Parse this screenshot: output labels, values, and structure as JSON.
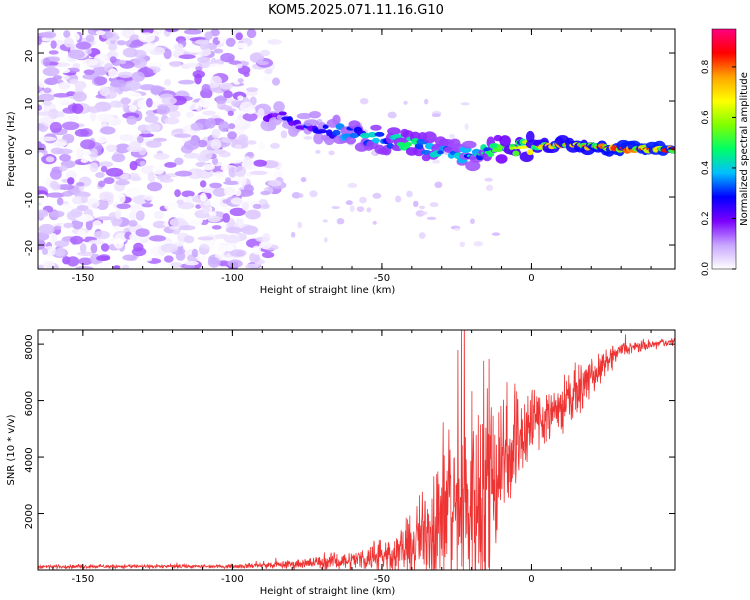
{
  "title": "KOM5.2025.071.11.16.G10",
  "chart_data": [
    {
      "type": "heatmap",
      "xlabel": "Height of straight line (km)",
      "ylabel": "Frequency (Hz)",
      "xlim": [
        -165,
        48
      ],
      "ylim": [
        -25,
        25
      ],
      "xticks": [
        -150,
        -100,
        -50,
        0
      ],
      "yticks": [
        -20,
        -10,
        0,
        10,
        20
      ],
      "colorbar": {
        "label": "Normalized spectral amplitude",
        "range": [
          0,
          0.95
        ],
        "ticks": [
          0.0,
          0.2,
          0.4,
          0.6,
          0.8
        ],
        "colors": [
          "#ffffff",
          "#c8a6ff",
          "#7b00ff",
          "#0000ff",
          "#00bfff",
          "#00ff66",
          "#80ff00",
          "#ffff00",
          "#ffa500",
          "#ff0000",
          "#ff0080"
        ]
      },
      "noise_region": {
        "x_range": [
          -165,
          -80
        ],
        "amplitude_range": [
          0.0,
          0.15
        ]
      },
      "signal_trace": [
        {
          "x": -88,
          "freq": 7,
          "amplitude": 0.25
        },
        {
          "x": -80,
          "freq": 6,
          "amplitude": 0.28
        },
        {
          "x": -70,
          "freq": 4.5,
          "amplitude": 0.32
        },
        {
          "x": -60,
          "freq": 3,
          "amplitude": 0.4
        },
        {
          "x": -50,
          "freq": 2,
          "amplitude": 0.45
        },
        {
          "x": -40,
          "freq": 1,
          "amplitude": 0.5
        },
        {
          "x": -30,
          "freq": -0.5,
          "amplitude": 0.45
        },
        {
          "x": -20,
          "freq": -1.5,
          "amplitude": 0.4
        },
        {
          "x": -10,
          "freq": 0,
          "amplitude": 0.55
        },
        {
          "x": 0,
          "freq": 0.5,
          "amplitude": 0.7
        },
        {
          "x": 10,
          "freq": 1,
          "amplitude": 0.75
        },
        {
          "x": 20,
          "freq": 0.5,
          "amplitude": 0.8
        },
        {
          "x": 30,
          "freq": 0,
          "amplitude": 0.85
        },
        {
          "x": 45,
          "freq": 0,
          "amplitude": 0.85
        }
      ]
    },
    {
      "type": "line",
      "xlabel": "Height of straight line (km)",
      "ylabel": "SNR (10 * v/v)",
      "xlim": [
        -165,
        48
      ],
      "ylim": [
        0,
        8500
      ],
      "xticks": [
        -150,
        -100,
        -50,
        0
      ],
      "yticks": [
        2000,
        4000,
        6000,
        8000
      ],
      "series": [
        {
          "color": "#ee3333",
          "envelope": [
            {
              "x": -165,
              "mean": 120,
              "amp": 60
            },
            {
              "x": -100,
              "mean": 130,
              "amp": 60
            },
            {
              "x": -80,
              "mean": 200,
              "amp": 150
            },
            {
              "x": -60,
              "mean": 350,
              "amp": 300
            },
            {
              "x": -50,
              "mean": 500,
              "amp": 500
            },
            {
              "x": -40,
              "mean": 800,
              "amp": 900
            },
            {
              "x": -35,
              "mean": 1400,
              "amp": 1800
            },
            {
              "x": -30,
              "mean": 2000,
              "amp": 2500
            },
            {
              "x": -20,
              "mean": 2400,
              "amp": 3500
            },
            {
              "x": -15,
              "mean": 3000,
              "amp": 4000
            },
            {
              "x": -10,
              "mean": 4000,
              "amp": 2500
            },
            {
              "x": 0,
              "mean": 5200,
              "amp": 1200
            },
            {
              "x": 10,
              "mean": 5800,
              "amp": 900
            },
            {
              "x": 20,
              "mean": 6800,
              "amp": 600
            },
            {
              "x": 30,
              "mean": 7800,
              "amp": 250
            },
            {
              "x": 48,
              "mean": 8100,
              "amp": 100
            }
          ]
        }
      ]
    }
  ]
}
